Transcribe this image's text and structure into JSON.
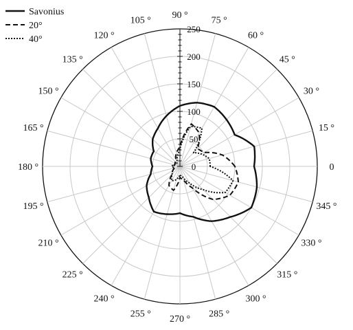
{
  "chart_data": {
    "type": "polar-line",
    "title": "",
    "angle_unit": "degrees",
    "angle_labels": [
      "0",
      "15 °",
      "30 °",
      "45 °",
      "60 °",
      "75 °",
      "90 °",
      "105 °",
      "120 °",
      "135 °",
      "150 °",
      "165 °",
      "180 °",
      "195 °",
      "210 °",
      "225 °",
      "240 °",
      "255 °",
      "270 °",
      "285 °",
      "300 °",
      "315 °",
      "330 °",
      "345 °"
    ],
    "radial_ticks": [
      0,
      50,
      100,
      150,
      200,
      250
    ],
    "radial_tick_labels": [
      "0",
      "50",
      "100",
      "150",
      "200",
      "250"
    ],
    "rlim": [
      0,
      250
    ],
    "grid": true,
    "legend_position": "top-left",
    "theta": [
      0,
      15,
      30,
      45,
      60,
      75,
      90,
      105,
      120,
      135,
      150,
      165,
      180,
      195,
      210,
      225,
      240,
      255,
      270,
      285,
      300,
      315,
      330,
      345
    ],
    "series": [
      {
        "name": "Savonius",
        "style": "solid",
        "values": [
          135,
          140,
          115,
          120,
          125,
          120,
          110,
          95,
          80,
          70,
          55,
          55,
          50,
          55,
          70,
          80,
          95,
          90,
          85,
          95,
          115,
          130,
          150,
          145
        ]
      },
      {
        "name": "20°",
        "style": "dashed",
        "values": [
          100,
          80,
          50,
          45,
          70,
          80,
          35,
          25,
          15,
          12,
          10,
          10,
          12,
          10,
          15,
          20,
          40,
          45,
          20,
          25,
          45,
          85,
          105,
          110
        ]
      },
      {
        "name": "40°",
        "style": "dotted",
        "values": [
          55,
          55,
          45,
          35,
          80,
          75,
          30,
          18,
          10,
          8,
          8,
          12,
          15,
          10,
          15,
          20,
          30,
          25,
          15,
          20,
          35,
          60,
          95,
          100
        ]
      }
    ]
  },
  "colors": {
    "line": "#111111",
    "grid": "#c8c8c8",
    "axis": "#111111"
  }
}
